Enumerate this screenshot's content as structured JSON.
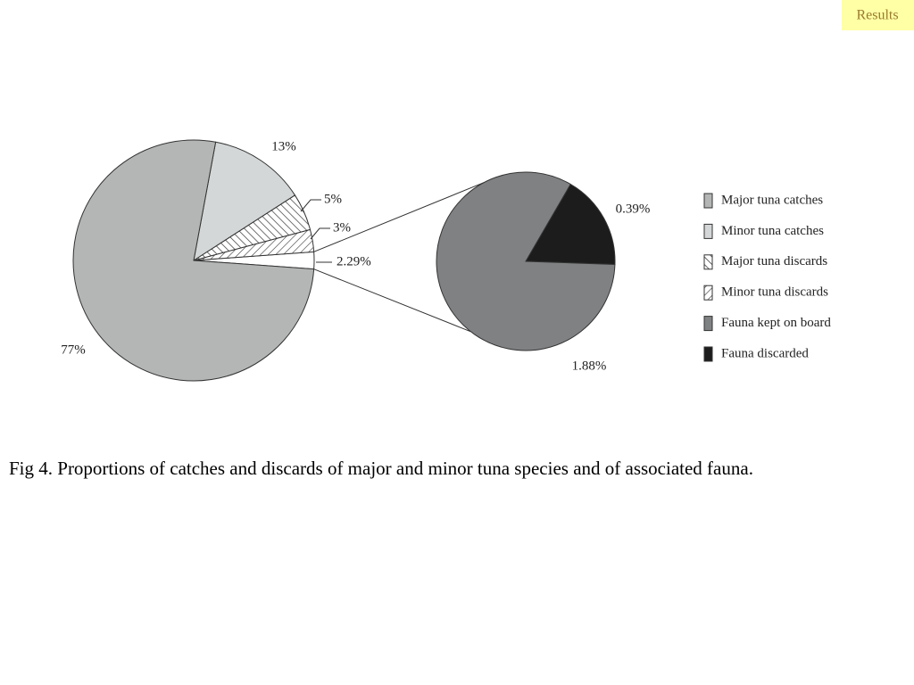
{
  "header": {
    "badge": "Results"
  },
  "chart_data": {
    "type": "pie-of-pie",
    "main": {
      "categories": [
        "Major tuna catches",
        "Minor tuna catches",
        "Major tuna discards",
        "Minor tuna discards",
        null
      ],
      "values": [
        77,
        13,
        5,
        3,
        2.29
      ],
      "value_labels": [
        "77%",
        "13%",
        "5%",
        "3%",
        "2.29%"
      ],
      "colors": [
        "#b4b6b6",
        "#d4d7d7",
        "#ffffff",
        "#ffffff",
        "#ffffff"
      ],
      "hatch": [
        "none",
        "none",
        "backward",
        "forward",
        "none"
      ]
    },
    "secondary": {
      "categories": [
        "Fauna kept on board",
        "Fauna discarded"
      ],
      "values": [
        1.88,
        0.39
      ],
      "value_labels": [
        "1.88%",
        "0.39%"
      ],
      "colors": [
        "#7f8183",
        "#1c1c1c"
      ],
      "hatch": [
        "none",
        "none"
      ]
    }
  },
  "caption": "Fig 4. Proportions of catches and discards of major and minor tuna species and of associated fauna."
}
